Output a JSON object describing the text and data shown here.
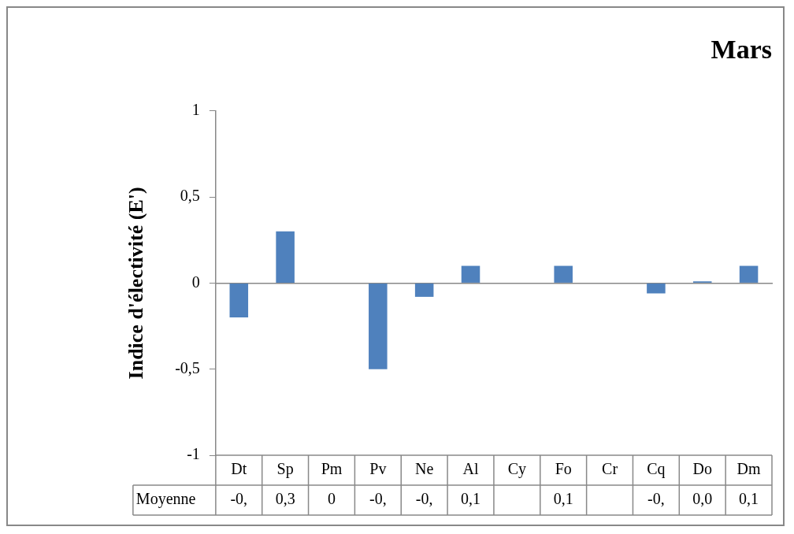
{
  "chart_data": {
    "type": "bar",
    "title": "Mars",
    "ylabel": "Indice d'électivité (E')",
    "categories": [
      "Dt",
      "Sp",
      "Pm",
      "Pv",
      "Ne",
      "Al",
      "Cy",
      "Fo",
      "Cr",
      "Cq",
      "Do",
      "Dm"
    ],
    "series": [
      {
        "name": "Moyenne",
        "color": "#4f81bd",
        "values": [
          -0.2,
          0.3,
          0,
          -0.5,
          -0.08,
          0.1,
          null,
          0.1,
          null,
          -0.06,
          0.01,
          0.1
        ],
        "value_labels": [
          "-0,",
          "0,3",
          "0",
          "-0,",
          "-0,",
          "0,1",
          null,
          "0,1",
          null,
          "-0,",
          "0,0",
          "0,1"
        ]
      }
    ],
    "ylim": [
      -1,
      1
    ],
    "yticks": [
      -1,
      {
        "value": -0.5,
        "label": "-0,5"
      },
      0,
      {
        "value": 0.5,
        "label": "0,5"
      },
      1
    ],
    "legend": false
  }
}
